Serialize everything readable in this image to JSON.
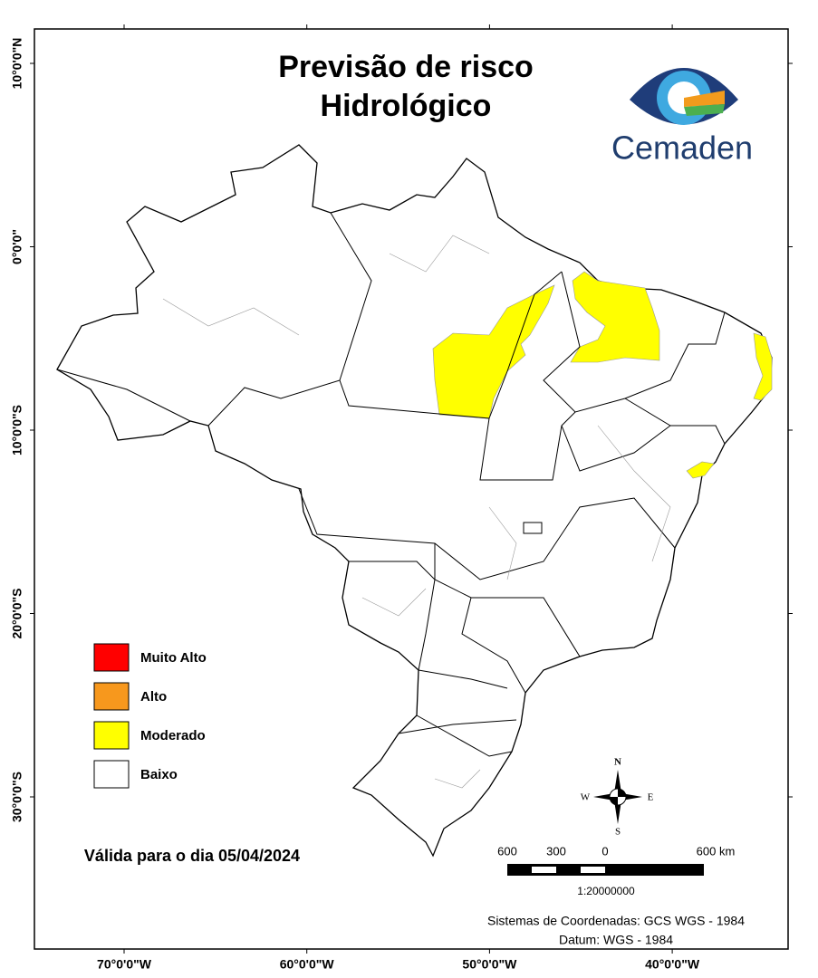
{
  "header": {
    "title_lines": [
      "Previsão de risco",
      "Hidrológico"
    ],
    "logo_text": "Cemaden"
  },
  "legend": {
    "items": [
      {
        "label": "Muito Alto",
        "color": "#ff0000"
      },
      {
        "label": "Alto",
        "color": "#f7981d"
      },
      {
        "label": "Moderado",
        "color": "#ffff00"
      },
      {
        "label": "Baixo",
        "color": "#ffffff"
      }
    ]
  },
  "validity": "Válida para o dia 05/04/2024",
  "compass": {
    "north": "N",
    "south": "S",
    "east": "E",
    "west": "W"
  },
  "scale": {
    "labels": [
      "600",
      "300",
      "0",
      "600 km"
    ],
    "ratio": "1:20000000"
  },
  "coordinate_system": [
    "Sistemas de Coordenadas: GCS WGS - 1984",
    "Datum: WGS - 1984"
  ],
  "latitude_labels": [
    "10°0'0\"N",
    "0°0'0\"",
    "10°0'0\"S",
    "20°0'0\"S",
    "30°0'0\"S"
  ],
  "longitude_labels": [
    "70°0'0\"W",
    "60°0'0\"W",
    "50°0'0\"W",
    "40°0'0\"W"
  ]
}
